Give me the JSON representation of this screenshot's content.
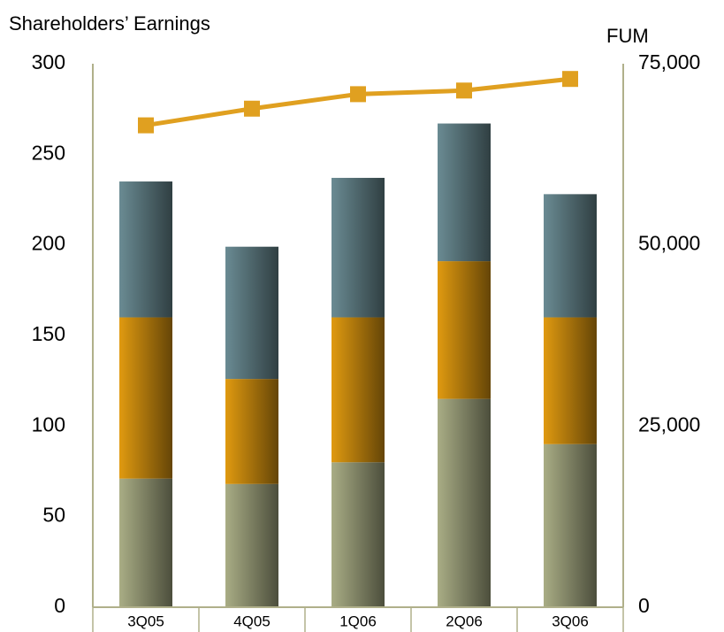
{
  "chart_data": {
    "type": "bar",
    "stacked": true,
    "title": "Shareholders’ Earnings",
    "y2_label": "FUM",
    "categories": [
      "3Q05",
      "4Q05",
      "1Q06",
      "2Q06",
      "3Q06"
    ],
    "series": [
      {
        "color": "#a9ad85",
        "values": [
          71,
          68,
          80,
          115,
          90
        ]
      },
      {
        "color": "#e09a10",
        "values": [
          89,
          58,
          80,
          76,
          70
        ]
      },
      {
        "color": "#6a8b93",
        "values": [
          75,
          73,
          77,
          76,
          68
        ]
      },
      {
        "type": "line",
        "axis": "y2",
        "color": "#e0a020",
        "values": [
          66500,
          68800,
          70800,
          71300,
          72900
        ]
      }
    ],
    "ylim": [
      0,
      300
    ],
    "yticks": [
      0,
      50,
      100,
      150,
      200,
      250,
      300
    ],
    "y2lim": [
      0,
      75000
    ],
    "y2ticks": [
      0,
      {
        "value": 25000,
        "label": "25,000"
      },
      {
        "value": 50000,
        "label": "50,000"
      },
      {
        "value": 75000,
        "label": "75,000"
      }
    ]
  }
}
